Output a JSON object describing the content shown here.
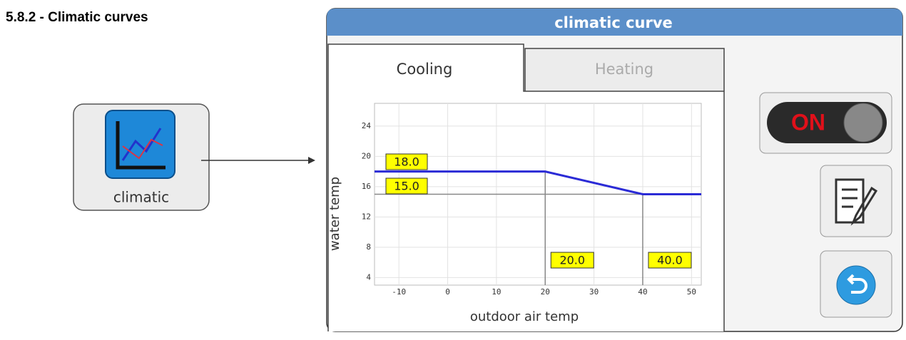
{
  "heading": "5.8.2 - Climatic curves",
  "icon_label": "climatic",
  "window": {
    "title": "climatic curve",
    "tabs": [
      "Cooling",
      "Heating"
    ],
    "toggle": "ON"
  },
  "chart_data": {
    "type": "line",
    "x_label": "outdoor air temp",
    "y_label": "water temp",
    "x": [
      -15,
      20,
      40,
      52
    ],
    "series": [
      {
        "color": "#2b2bd6",
        "values": [
          18,
          18,
          15,
          15
        ]
      }
    ],
    "xlim": [
      -15,
      52
    ],
    "xticks": [
      -10,
      0,
      10,
      20,
      30,
      40,
      50
    ],
    "ylim": [
      3,
      27
    ],
    "yticks": [
      4,
      8,
      12,
      16,
      20,
      24
    ],
    "grid": true,
    "y_markers": [
      {
        "value": 18,
        "label": "18.0"
      },
      {
        "value": 15,
        "label": "15.0"
      }
    ],
    "x_markers": [
      {
        "value": 20,
        "label": "20.0"
      },
      {
        "value": 40,
        "label": "40.0"
      }
    ]
  }
}
